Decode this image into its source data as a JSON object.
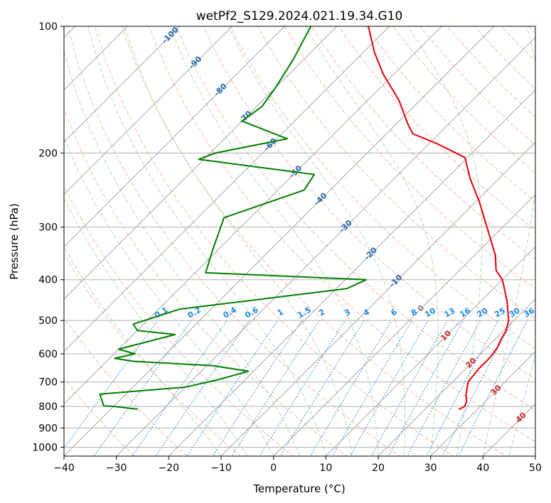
{
  "chart_data": {
    "type": "skew-t log-p",
    "title": "wetPf2_S129.2024.021.19.34.G10",
    "xlabel": "Temperature (°C)",
    "ylabel": "Pressure (hPa)",
    "xlim": [
      -40,
      50
    ],
    "ylim": [
      1050,
      100
    ],
    "y_scale": "log",
    "grid": true,
    "x_ticks": [
      -40,
      -30,
      -20,
      -10,
      0,
      10,
      20,
      30,
      40,
      50
    ],
    "y_ticks": [
      1000,
      900,
      800,
      700,
      600,
      500,
      400,
      300,
      200,
      100
    ],
    "isotherm_labels": [
      -100,
      -90,
      -80,
      -70,
      -60,
      -50,
      -40,
      -30,
      -20,
      -10,
      0,
      10,
      20,
      30,
      40
    ],
    "mixing_ratio_labels": [
      "0.1",
      "0.2",
      "0.4",
      "0.6",
      "1",
      "1.5",
      "2",
      "3",
      "4",
      "6",
      "8",
      "10",
      "13",
      "16",
      "20",
      "25",
      "30",
      "36"
    ],
    "colors": {
      "temperature": "#e8000b",
      "dewpoint": "#008000",
      "dry_adiabat": "#f4a582",
      "moist_adiabat": "#9fd49f",
      "mixing_ratio": "#1e88e5",
      "isotherm_grid": "#a8a8a8",
      "isotherm_label_cold": "#2166ac",
      "isotherm_label_zero": "#808080",
      "isotherm_label_warm": "#c62828"
    },
    "series": [
      {
        "name": "Temperature",
        "points": [
          {
            "p": 812,
            "t": 26.5
          },
          {
            "p": 800,
            "t": 27.0
          },
          {
            "p": 780,
            "t": 26.5
          },
          {
            "p": 750,
            "t": 25.0
          },
          {
            "p": 700,
            "t": 23.0
          },
          {
            "p": 650,
            "t": 22.5
          },
          {
            "p": 610,
            "t": 22.5
          },
          {
            "p": 580,
            "t": 22.0
          },
          {
            "p": 550,
            "t": 21.0
          },
          {
            "p": 530,
            "t": 20.5
          },
          {
            "p": 500,
            "t": 19.0
          },
          {
            "p": 450,
            "t": 15.0
          },
          {
            "p": 400,
            "t": 10.0
          },
          {
            "p": 380,
            "t": 7.0
          },
          {
            "p": 350,
            "t": 4.0
          },
          {
            "p": 300,
            "t": -3.0
          },
          {
            "p": 260,
            "t": -9.5
          },
          {
            "p": 230,
            "t": -15.5
          },
          {
            "p": 205,
            "t": -20.5
          },
          {
            "p": 190,
            "t": -28.5
          },
          {
            "p": 180,
            "t": -35.0
          },
          {
            "p": 170,
            "t": -38.0
          },
          {
            "p": 150,
            "t": -44.0
          },
          {
            "p": 130,
            "t": -52.0
          },
          {
            "p": 115,
            "t": -58.0
          },
          {
            "p": 100,
            "t": -64.0
          }
        ]
      },
      {
        "name": "Dewpoint",
        "points": [
          {
            "p": 812,
            "t": -35.0
          },
          {
            "p": 800,
            "t": -40.0
          },
          {
            "p": 798,
            "t": -42.0
          },
          {
            "p": 748,
            "t": -45.0
          },
          {
            "p": 720,
            "t": -30.0
          },
          {
            "p": 690,
            "t": -25.0
          },
          {
            "p": 660,
            "t": -21.0
          },
          {
            "p": 640,
            "t": -29.0
          },
          {
            "p": 625,
            "t": -45.0
          },
          {
            "p": 615,
            "t": -49.0
          },
          {
            "p": 600,
            "t": -46.0
          },
          {
            "p": 585,
            "t": -50.0
          },
          {
            "p": 540,
            "t": -42.0
          },
          {
            "p": 528,
            "t": -50.0
          },
          {
            "p": 510,
            "t": -52.0
          },
          {
            "p": 470,
            "t": -46.0
          },
          {
            "p": 420,
            "t": -18.0
          },
          {
            "p": 400,
            "t": -16.0
          },
          {
            "p": 385,
            "t": -48.0
          },
          {
            "p": 340,
            "t": -51.0
          },
          {
            "p": 285,
            "t": -55.0
          },
          {
            "p": 245,
            "t": -45.0
          },
          {
            "p": 225,
            "t": -46.0
          },
          {
            "p": 207,
            "t": -71.0
          },
          {
            "p": 200,
            "t": -69.0
          },
          {
            "p": 185,
            "t": -58.0
          },
          {
            "p": 168,
            "t": -70.0
          },
          {
            "p": 155,
            "t": -69.0
          },
          {
            "p": 140,
            "t": -70.0
          },
          {
            "p": 120,
            "t": -72.0
          },
          {
            "p": 100,
            "t": -75.0
          }
        ]
      }
    ]
  }
}
